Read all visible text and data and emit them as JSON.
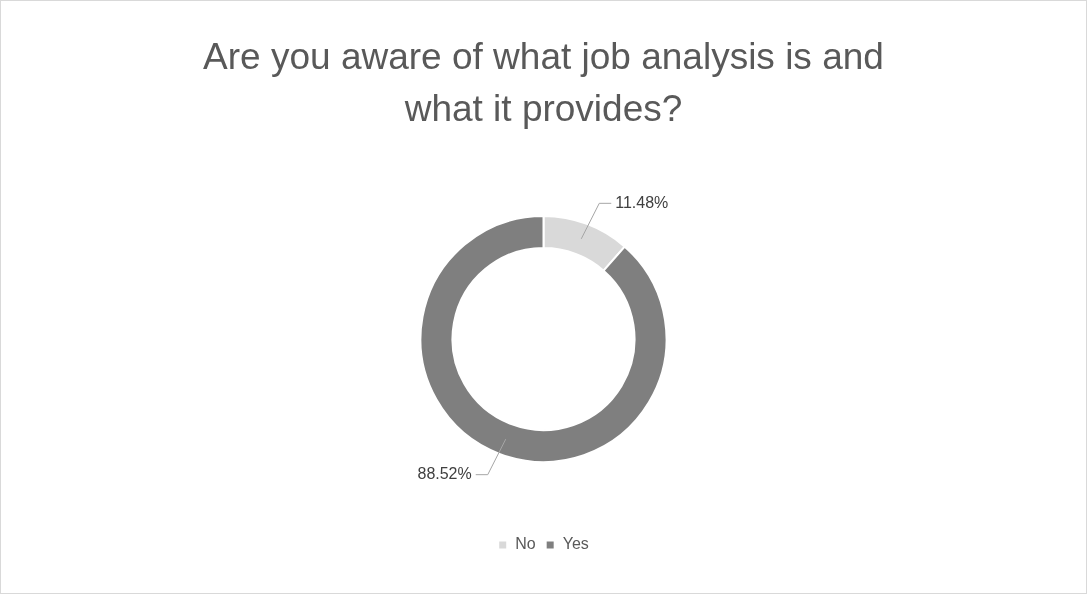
{
  "chart_data": {
    "type": "donut",
    "title": "Are you aware of what job analysis is and what it provides?",
    "categories": [
      "No",
      "Yes"
    ],
    "values": [
      11.48,
      88.52
    ],
    "colors": [
      "#d9d9d9",
      "#7f7f7f"
    ],
    "value_labels": [
      "11.48%",
      "88.52%"
    ],
    "legend": "bottom"
  }
}
